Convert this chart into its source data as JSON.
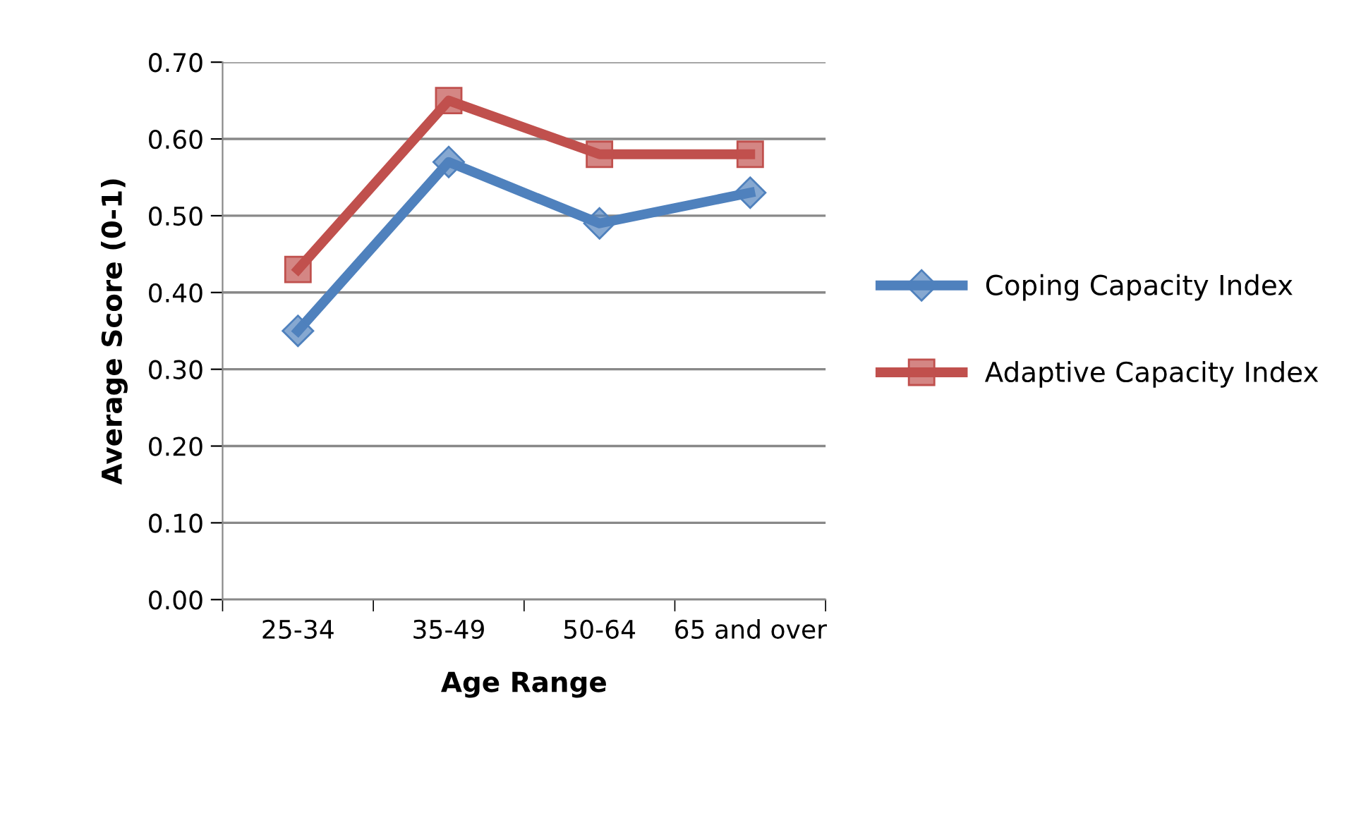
{
  "chart_data": {
    "type": "line",
    "xlabel": "Age Range",
    "ylabel": "Average Score (0-1)",
    "categories": [
      "25-34",
      "35-49",
      "50-64",
      "65 and over"
    ],
    "series": [
      {
        "name": "Coping Capacity Index",
        "color": "#4f81bd",
        "marker": "diamond",
        "values": [
          0.35,
          0.57,
          0.49,
          0.53
        ]
      },
      {
        "name": "Adaptive Capacity Index",
        "color": "#c0504d",
        "marker": "square",
        "values": [
          0.43,
          0.65,
          0.58,
          0.58
        ]
      }
    ],
    "ylim": [
      0,
      0.7
    ],
    "yticks": [
      {
        "value": 0,
        "label": "0.00"
      },
      {
        "value": 0.1,
        "label": "0.10"
      },
      {
        "value": 0.2,
        "label": "0.20"
      },
      {
        "value": 0.3,
        "label": "0.30"
      },
      {
        "value": 0.4,
        "label": "0.40"
      },
      {
        "value": 0.5,
        "label": "0.50"
      },
      {
        "value": 0.6,
        "label": "0.60"
      },
      {
        "value": 0.7,
        "label": "0.70"
      }
    ],
    "grid": "y",
    "legend": "right",
    "line_style": "solid"
  }
}
